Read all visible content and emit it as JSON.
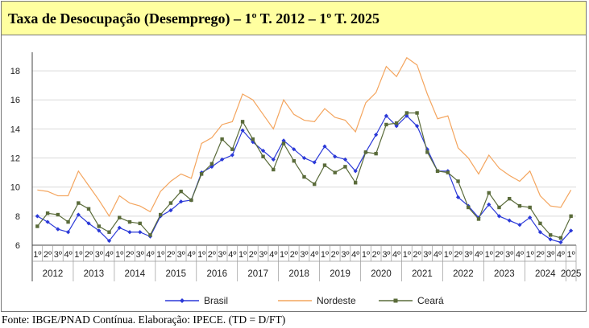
{
  "title": "Taxa de Desocupação (Desemprego) – 1º T. 2012 – 1º T. 2025",
  "footer": "Fonte: IBGE/PNAD Contínua. Elaboração: IPECE. (TD = D/FT)",
  "chart_data": {
    "type": "line",
    "title": "Taxa de Desocupação (Desemprego) – 1º T. 2012 – 1º T. 2025",
    "ylim": [
      6,
      19
    ],
    "yticks": [
      6,
      8,
      10,
      12,
      14,
      16,
      18
    ],
    "grid": "horizontal",
    "legend_position": "bottom",
    "quarter_labels": [
      "1º",
      "2º",
      "3º",
      "4º"
    ],
    "years": [
      "2012",
      "2013",
      "2014",
      "2015",
      "2016",
      "2017",
      "2018",
      "2019",
      "2020",
      "2021",
      "2022",
      "2023",
      "2024",
      "2025"
    ],
    "x": [
      "2012-1",
      "2012-2",
      "2012-3",
      "2012-4",
      "2013-1",
      "2013-2",
      "2013-3",
      "2013-4",
      "2014-1",
      "2014-2",
      "2014-3",
      "2014-4",
      "2015-1",
      "2015-2",
      "2015-3",
      "2015-4",
      "2016-1",
      "2016-2",
      "2016-3",
      "2016-4",
      "2017-1",
      "2017-2",
      "2017-3",
      "2017-4",
      "2018-1",
      "2018-2",
      "2018-3",
      "2018-4",
      "2019-1",
      "2019-2",
      "2019-3",
      "2019-4",
      "2020-1",
      "2020-2",
      "2020-3",
      "2020-4",
      "2021-1",
      "2021-2",
      "2021-3",
      "2021-4",
      "2022-1",
      "2022-2",
      "2022-3",
      "2022-4",
      "2023-1",
      "2023-2",
      "2023-3",
      "2023-4",
      "2024-1",
      "2024-2",
      "2024-3",
      "2024-4",
      "2025-1"
    ],
    "series": [
      {
        "name": "Brasil",
        "color": "#2b39d8",
        "marker": "diamond",
        "values": [
          8.0,
          7.6,
          7.1,
          6.9,
          8.1,
          7.5,
          7.0,
          6.3,
          7.2,
          6.9,
          6.9,
          6.6,
          8.0,
          8.4,
          9.0,
          9.1,
          11.0,
          11.4,
          11.9,
          12.2,
          13.9,
          13.1,
          12.5,
          11.9,
          13.2,
          12.6,
          12.0,
          11.7,
          12.8,
          12.1,
          11.9,
          11.1,
          12.4,
          13.6,
          14.9,
          14.2,
          14.9,
          14.2,
          12.6,
          11.1,
          11.1,
          9.3,
          8.7,
          7.9,
          8.8,
          8.0,
          7.7,
          7.4,
          7.9,
          6.9,
          6.4,
          6.2,
          7.0
        ]
      },
      {
        "name": "Nordeste",
        "color": "#f4a55e",
        "marker": "none",
        "values": [
          9.8,
          9.7,
          9.4,
          9.4,
          11.1,
          10.1,
          9.1,
          8.0,
          9.4,
          8.9,
          8.7,
          8.3,
          9.7,
          10.4,
          10.9,
          10.6,
          13.0,
          13.4,
          14.3,
          14.5,
          16.4,
          16.0,
          15.0,
          14.0,
          16.0,
          15.0,
          14.6,
          14.5,
          15.4,
          14.8,
          14.6,
          13.8,
          15.8,
          16.5,
          18.3,
          17.6,
          18.9,
          18.4,
          16.4,
          14.7,
          14.9,
          12.7,
          12.0,
          10.9,
          12.2,
          11.3,
          10.8,
          10.4,
          11.1,
          9.4,
          8.7,
          8.6,
          9.8
        ]
      },
      {
        "name": "Ceará",
        "color": "#5a6b3a",
        "marker": "square",
        "values": [
          7.3,
          8.2,
          8.1,
          7.6,
          8.9,
          8.5,
          7.3,
          6.9,
          7.9,
          7.6,
          7.5,
          6.7,
          8.1,
          8.9,
          9.7,
          9.1,
          10.9,
          11.6,
          13.3,
          12.6,
          14.5,
          13.3,
          12.1,
          11.2,
          13.0,
          11.8,
          10.7,
          10.2,
          11.5,
          11.0,
          11.4,
          10.3,
          12.4,
          12.3,
          14.3,
          14.4,
          15.1,
          15.1,
          12.4,
          11.1,
          11.0,
          10.4,
          8.6,
          7.8,
          9.6,
          8.6,
          9.2,
          8.7,
          8.6,
          7.5,
          6.7,
          6.5,
          8.0
        ]
      }
    ]
  }
}
